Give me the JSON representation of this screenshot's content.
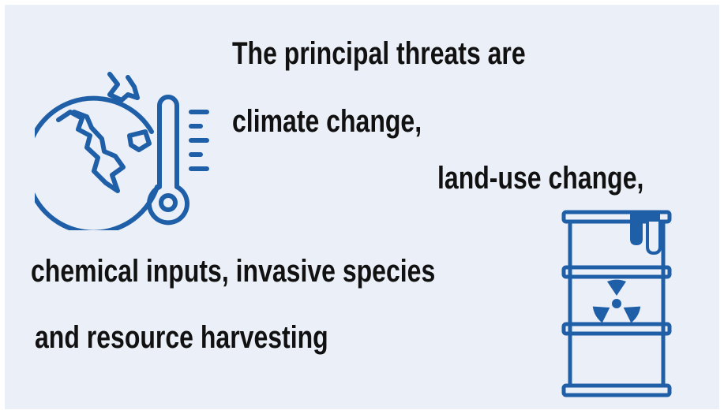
{
  "colors": {
    "background": "#ebeff7",
    "text": "#111111",
    "icon": "#1f5fa8"
  },
  "icons": {
    "left": "globe-thermometer-icon",
    "right": "radioactive-barrel-icon"
  },
  "lines": [
    "The principal threats are",
    "climate change,",
    "land-use change,",
    "chemical inputs, invasive species",
    "and resource harvesting"
  ]
}
